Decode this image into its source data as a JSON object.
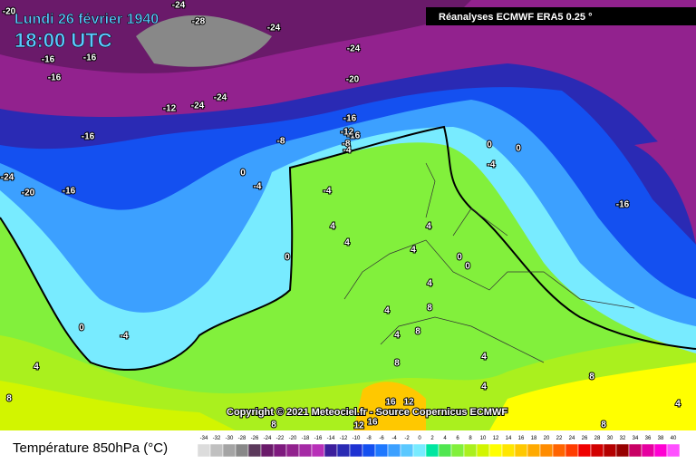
{
  "header": {
    "date": "Lundi 26 février 1940",
    "time": "18:00 UTC",
    "source": "Réanalyses ECMWF ERA5 0.25 °"
  },
  "copyright": "Copyright © 2021 Meteociel.fr - Source Copernicus ECMWF",
  "legend": {
    "title": "Température 850hPa (°C)",
    "ticks": [
      -34,
      -32,
      -30,
      -28,
      -26,
      -24,
      -22,
      -20,
      -18,
      -16,
      -14,
      -12,
      -10,
      -8,
      -6,
      -4,
      -2,
      0,
      2,
      4,
      6,
      8,
      10,
      12,
      14,
      16,
      18,
      20,
      22,
      24,
      26,
      28,
      30,
      32,
      34,
      36,
      38,
      40
    ],
    "colors": [
      "#dcdcdc",
      "#c0c0c0",
      "#a4a4a4",
      "#888888",
      "#5c3a5c",
      "#6a1a6a",
      "#7e1a7e",
      "#92228e",
      "#a52aa5",
      "#b830b8",
      "#3c1e9c",
      "#2a2ab4",
      "#1e32d2",
      "#1450f0",
      "#1e78ff",
      "#3ca0ff",
      "#5ac8ff",
      "#78ebff",
      "#00e6a0",
      "#50e650",
      "#82f03c",
      "#aaf01e",
      "#d2f500",
      "#ffff00",
      "#ffe600",
      "#ffc800",
      "#ffaa00",
      "#ff8c00",
      "#ff6400",
      "#ff3c00",
      "#f00000",
      "#d20000",
      "#b40000",
      "#960000",
      "#c80064",
      "#e600a0",
      "#ff00d2",
      "#ff50ff"
    ]
  },
  "map_labels": [
    -20,
    -24,
    -28,
    -24,
    -16,
    -16,
    -16,
    -16,
    -12,
    -24,
    -24,
    -24,
    -20,
    -16,
    -16,
    -12,
    -8,
    -8,
    -4,
    -24,
    -20,
    -16,
    0,
    -4,
    0,
    0,
    -4,
    -4,
    4,
    4,
    4,
    0,
    4,
    0,
    0,
    -16,
    0,
    -4,
    4,
    4,
    8,
    8,
    4,
    8,
    4,
    4,
    8,
    4,
    8,
    12,
    16,
    16,
    12,
    8,
    8,
    4
  ]
}
